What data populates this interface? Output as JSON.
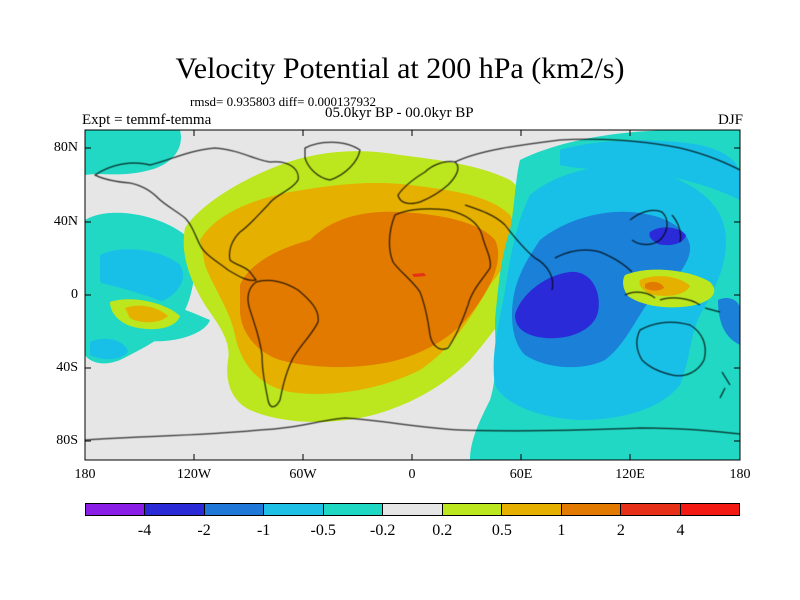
{
  "title": "Velocity Potential at 200 hPa (km2/s)",
  "stats": "rmsd= 0.935803 diff= 0.000137932",
  "experiment": "Expt = temmf-temma",
  "period": "05.0kyr BP - 00.0kyr BP",
  "season": "DJF",
  "lat_labels": [
    "80N",
    "40N",
    "0",
    "40S",
    "80S"
  ],
  "lon_labels": [
    "180",
    "120W",
    "60W",
    "0",
    "60E",
    "120E",
    "180"
  ],
  "colorbar": {
    "labels": [
      "-4",
      "-2",
      "-1",
      "-0.5",
      "-0.2",
      "0.2",
      "0.5",
      "1",
      "2",
      "4"
    ],
    "colors": [
      "#8a1ee6",
      "#2a2ad6",
      "#1f78d8",
      "#1ec0e6",
      "#1ed8c4",
      "#e6e6e6",
      "#bce61e",
      "#e6b000",
      "#e27a00",
      "#e63018",
      "#f21a12"
    ]
  },
  "map_colors": {
    "background": "#e6e6e6",
    "cyan": "#20d8c4",
    "light_blue": "#18c0e8",
    "mid_blue": "#1a80d8",
    "dark_blue": "#2a2ad8",
    "lime": "#bce61e",
    "gold": "#e6b000",
    "orange": "#e27a00",
    "red": "#e63018"
  }
}
